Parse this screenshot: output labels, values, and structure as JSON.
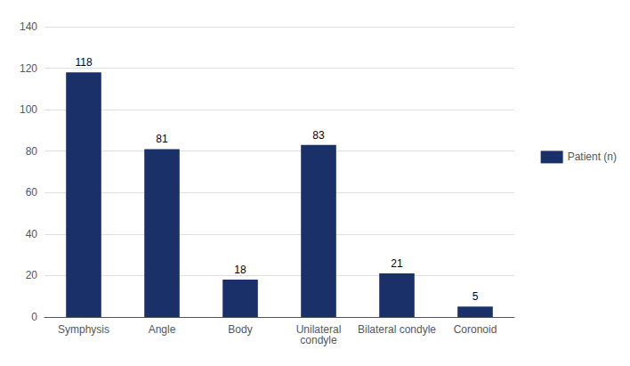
{
  "chart_data": {
    "type": "bar",
    "categories": [
      "Symphysis",
      "Angle",
      "Body",
      "Unilateral\ncondyle",
      "Bilateral condyle",
      "Coronoid"
    ],
    "series": [
      {
        "name": "Patient (n)",
        "color": "#1a3068",
        "values": [
          118,
          81,
          18,
          83,
          21,
          5
        ]
      }
    ],
    "ylim": [
      0,
      140
    ],
    "yticks": [
      0,
      20,
      40,
      60,
      80,
      100,
      120,
      140
    ],
    "grid": true,
    "legend": "right",
    "data_labels": true
  }
}
